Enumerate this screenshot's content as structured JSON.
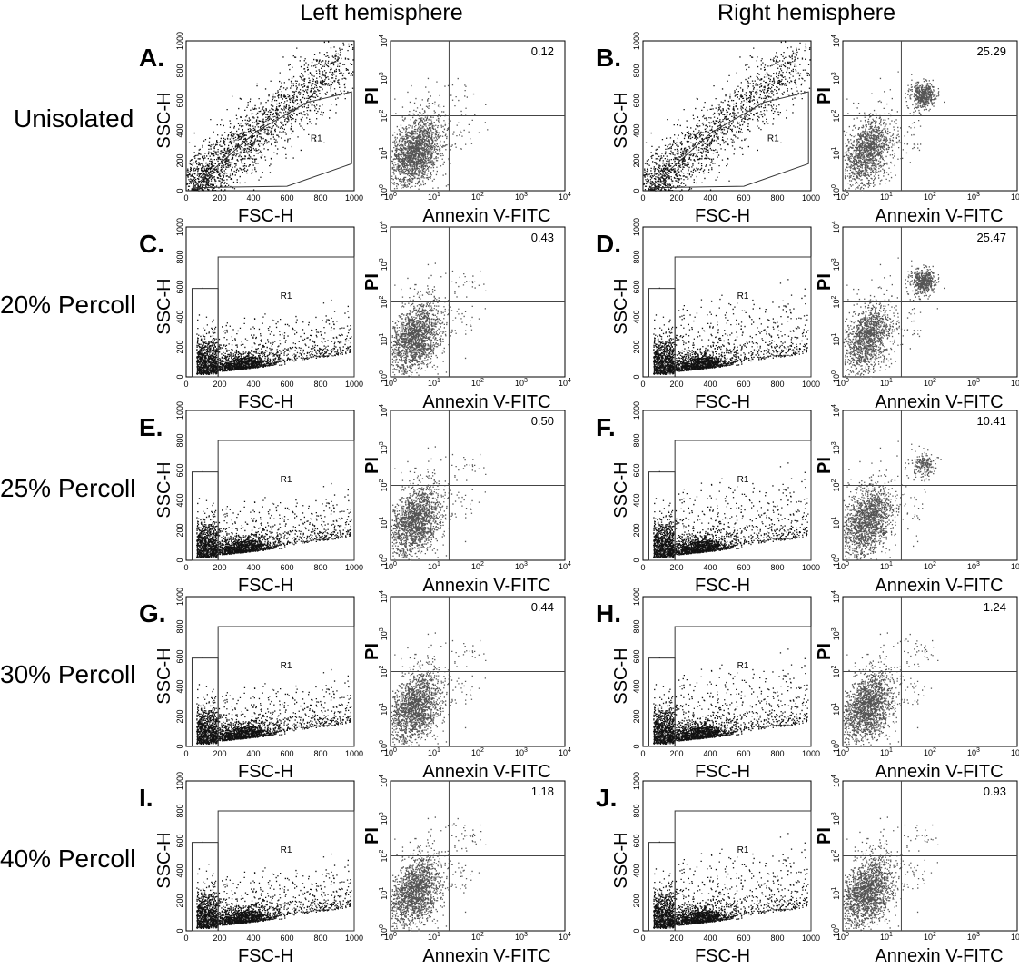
{
  "headers": {
    "left": "Left hemisphere",
    "right": "Right hemisphere"
  },
  "colors": {
    "scatter_dots": "#111111",
    "annexin_dots": "#555555",
    "frame": "#000000"
  },
  "chart_data": [
    {
      "row": "Unisolated",
      "panels": [
        {
          "label": "A.",
          "type": "scatter",
          "xlabel": "FSC-H",
          "ylabel": "SSC-H",
          "xlim": [
            0,
            1000
          ],
          "ylim": [
            0,
            1000
          ],
          "x_ticks": [
            "0",
            "200",
            "400",
            "600",
            "800",
            "1000"
          ],
          "y_ticks": [
            "0",
            "200",
            "400",
            "600",
            "800",
            "1000"
          ],
          "gate": "R1"
        },
        {
          "label": "",
          "type": "scatter",
          "xlabel": "Annexin V-FITC",
          "ylabel": "PI",
          "scale": "log",
          "xlim": [
            1,
            10000
          ],
          "ylim": [
            1,
            10000
          ],
          "upper_right_percent": "0.12"
        }
      ]
    },
    {
      "row": "Unisolated",
      "panels": [
        {
          "label": "B.",
          "type": "scatter",
          "xlabel": "FSC-H",
          "ylabel": "SSC-H",
          "xlim": [
            0,
            1000
          ],
          "ylim": [
            0,
            1000
          ],
          "x_ticks": [
            "0",
            "200",
            "400",
            "600",
            "800",
            "1000"
          ],
          "y_ticks": [
            "0",
            "200",
            "400",
            "600",
            "800",
            "1000"
          ],
          "gate": "R1"
        },
        {
          "label": "",
          "type": "scatter",
          "xlabel": "Annexin V-FITC",
          "ylabel": "PI",
          "scale": "log",
          "xlim": [
            1,
            10000
          ],
          "ylim": [
            1,
            10000
          ],
          "upper_right_percent": "25.29"
        }
      ]
    },
    {
      "row": "20% Percoll",
      "panels": [
        {
          "label": "C.",
          "type": "scatter",
          "xlabel": "FSC-H",
          "ylabel": "SSC-H",
          "xlim": [
            0,
            1000
          ],
          "ylim": [
            0,
            1000
          ],
          "x_ticks": [
            "0",
            "200",
            "400",
            "600",
            "800",
            "1000"
          ],
          "y_ticks": [
            "0",
            "200",
            "400",
            "600",
            "800",
            "1000"
          ],
          "gate": "R1"
        },
        {
          "label": "",
          "type": "scatter",
          "xlabel": "Annexin V-FITC",
          "ylabel": "PI",
          "scale": "log",
          "xlim": [
            1,
            10000
          ],
          "ylim": [
            1,
            10000
          ],
          "upper_right_percent": "0.43"
        }
      ]
    },
    {
      "row": "20% Percoll",
      "panels": [
        {
          "label": "D.",
          "type": "scatter",
          "xlabel": "FSC-H",
          "ylabel": "SSC-H",
          "xlim": [
            0,
            1000
          ],
          "ylim": [
            0,
            1000
          ],
          "x_ticks": [
            "0",
            "200",
            "400",
            "600",
            "800",
            "1000"
          ],
          "y_ticks": [
            "0",
            "200",
            "400",
            "600",
            "800",
            "1000"
          ],
          "gate": "R1"
        },
        {
          "label": "",
          "type": "scatter",
          "xlabel": "Annexin V-FITC",
          "ylabel": "PI",
          "scale": "log",
          "xlim": [
            1,
            10000
          ],
          "ylim": [
            1,
            10000
          ],
          "upper_right_percent": "25.47"
        }
      ]
    },
    {
      "row": "25% Percoll",
      "panels": [
        {
          "label": "E.",
          "type": "scatter",
          "xlabel": "FSC-H",
          "ylabel": "SSC-H",
          "xlim": [
            0,
            1000
          ],
          "ylim": [
            0,
            1000
          ],
          "x_ticks": [
            "0",
            "200",
            "400",
            "600",
            "800",
            "1000"
          ],
          "y_ticks": [
            "0",
            "200",
            "400",
            "600",
            "800",
            "1000"
          ],
          "gate": "R1"
        },
        {
          "label": "",
          "type": "scatter",
          "xlabel": "Annexin V-FITC",
          "ylabel": "PI",
          "scale": "log",
          "xlim": [
            1,
            10000
          ],
          "ylim": [
            1,
            10000
          ],
          "upper_right_percent": "0.50"
        }
      ]
    },
    {
      "row": "25% Percoll",
      "panels": [
        {
          "label": "F.",
          "type": "scatter",
          "xlabel": "FSC-H",
          "ylabel": "SSC-H",
          "xlim": [
            0,
            1000
          ],
          "ylim": [
            0,
            1000
          ],
          "x_ticks": [
            "0",
            "200",
            "400",
            "600",
            "800",
            "1000"
          ],
          "y_ticks": [
            "0",
            "200",
            "400",
            "600",
            "800",
            "1000"
          ],
          "gate": "R1"
        },
        {
          "label": "",
          "type": "scatter",
          "xlabel": "Annexin V-FITC",
          "ylabel": "PI",
          "scale": "log",
          "xlim": [
            1,
            10000
          ],
          "ylim": [
            1,
            10000
          ],
          "upper_right_percent": "10.41"
        }
      ]
    },
    {
      "row": "30% Percoll",
      "panels": [
        {
          "label": "G.",
          "type": "scatter",
          "xlabel": "FSC-H",
          "ylabel": "SSC-H",
          "xlim": [
            0,
            1000
          ],
          "ylim": [
            0,
            1000
          ],
          "x_ticks": [
            "0",
            "200",
            "400",
            "600",
            "800",
            "1000"
          ],
          "y_ticks": [
            "0",
            "200",
            "400",
            "600",
            "800",
            "1000"
          ],
          "gate": "R1"
        },
        {
          "label": "",
          "type": "scatter",
          "xlabel": "Annexin V-FITC",
          "ylabel": "PI",
          "scale": "log",
          "xlim": [
            1,
            10000
          ],
          "ylim": [
            1,
            10000
          ],
          "upper_right_percent": "0.44"
        }
      ]
    },
    {
      "row": "30% Percoll",
      "panels": [
        {
          "label": "H.",
          "type": "scatter",
          "xlabel": "FSC-H",
          "ylabel": "SSC-H",
          "xlim": [
            0,
            1000
          ],
          "ylim": [
            0,
            1000
          ],
          "x_ticks": [
            "0",
            "200",
            "400",
            "600",
            "800",
            "1000"
          ],
          "y_ticks": [
            "0",
            "200",
            "400",
            "600",
            "800",
            "1000"
          ],
          "gate": "R1"
        },
        {
          "label": "",
          "type": "scatter",
          "xlabel": "Annexin V-FITC",
          "ylabel": "PI",
          "scale": "log",
          "xlim": [
            1,
            10000
          ],
          "ylim": [
            1,
            10000
          ],
          "upper_right_percent": "1.24"
        }
      ]
    },
    {
      "row": "40% Percoll",
      "panels": [
        {
          "label": "I.",
          "type": "scatter",
          "xlabel": "FSC-H",
          "ylabel": "SSC-H",
          "xlim": [
            0,
            1000
          ],
          "ylim": [
            0,
            1000
          ],
          "x_ticks": [
            "0",
            "200",
            "400",
            "600",
            "800",
            "1000"
          ],
          "y_ticks": [
            "0",
            "200",
            "400",
            "600",
            "800",
            "1000"
          ],
          "gate": "R1"
        },
        {
          "label": "",
          "type": "scatter",
          "xlabel": "Annexin V-FITC",
          "ylabel": "PI",
          "scale": "log",
          "xlim": [
            1,
            10000
          ],
          "ylim": [
            1,
            10000
          ],
          "upper_right_percent": "1.18"
        }
      ]
    },
    {
      "row": "40% Percoll",
      "panels": [
        {
          "label": "J.",
          "type": "scatter",
          "xlabel": "FSC-H",
          "ylabel": "SSC-H",
          "xlim": [
            0,
            1000
          ],
          "ylim": [
            0,
            1000
          ],
          "x_ticks": [
            "0",
            "200",
            "400",
            "600",
            "800",
            "1000"
          ],
          "y_ticks": [
            "0",
            "200",
            "400",
            "600",
            "800",
            "1000"
          ],
          "gate": "R1"
        },
        {
          "label": "",
          "type": "scatter",
          "xlabel": "Annexin V-FITC",
          "ylabel": "PI",
          "scale": "log",
          "xlim": [
            1,
            10000
          ],
          "ylim": [
            1,
            10000
          ],
          "upper_right_percent": "0.93"
        }
      ]
    }
  ]
}
